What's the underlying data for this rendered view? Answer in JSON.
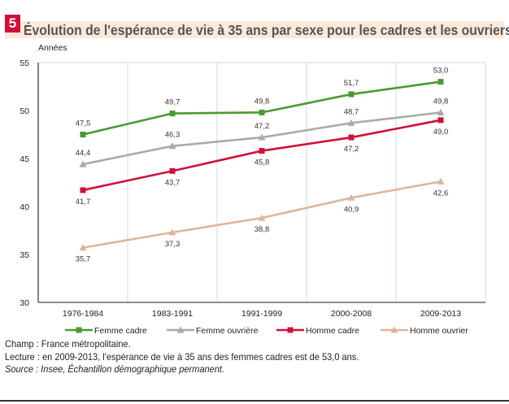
{
  "figure_number": "5",
  "chart_data": {
    "type": "line",
    "title": "Évolution de l'espérance de vie à 35 ans par sexe pour les cadres et les ouvriers",
    "ylabel": "Années",
    "xlabel": "",
    "ylim": [
      30,
      55
    ],
    "yticks": [
      30,
      35,
      40,
      45,
      50,
      55
    ],
    "categories": [
      "1976-1984",
      "1983-1991",
      "1991-1999",
      "2000-2008",
      "2009-2013"
    ],
    "grid": "vertical",
    "legend": "bottom",
    "series": [
      {
        "name": "Femme cadre",
        "color": "#4a9a2f",
        "marker": "square",
        "values": [
          47.5,
          49.7,
          49.8,
          51.7,
          53.0
        ],
        "labels": [
          "47,5",
          "49,7",
          "49,8",
          "51,7",
          "53,0"
        ],
        "label_pos": "above"
      },
      {
        "name": "Femme ouvrière",
        "color": "#a9aba5",
        "marker": "triangle",
        "values": [
          44.4,
          46.3,
          47.2,
          48.7,
          49.8
        ],
        "labels": [
          "44,4",
          "46,3",
          "47,2",
          "48,7",
          "49,8"
        ],
        "label_pos": "above"
      },
      {
        "name": "Homme cadre",
        "color": "#d0103a",
        "marker": "square",
        "values": [
          41.7,
          43.7,
          45.8,
          47.2,
          49.0
        ],
        "labels": [
          "41,7",
          "43,7",
          "45,8",
          "47,2",
          "49,0"
        ],
        "label_pos": "below"
      },
      {
        "name": "Homme ouvrier",
        "color": "#e0b49a",
        "marker": "triangle",
        "values": [
          35.7,
          37.3,
          38.8,
          40.9,
          42.6
        ],
        "labels": [
          "35,7",
          "37,3",
          "38,8",
          "40,9",
          "42,6"
        ],
        "label_pos": "below"
      }
    ]
  },
  "notes": {
    "champ": "Champ : France métropolitaine.",
    "lecture": "Lecture : en 2009-2013, l'espérance de vie à 35 ans des femmes cadres est de 53,0 ans.",
    "source": "Source : Insee, Échantillon démographique permanent."
  }
}
